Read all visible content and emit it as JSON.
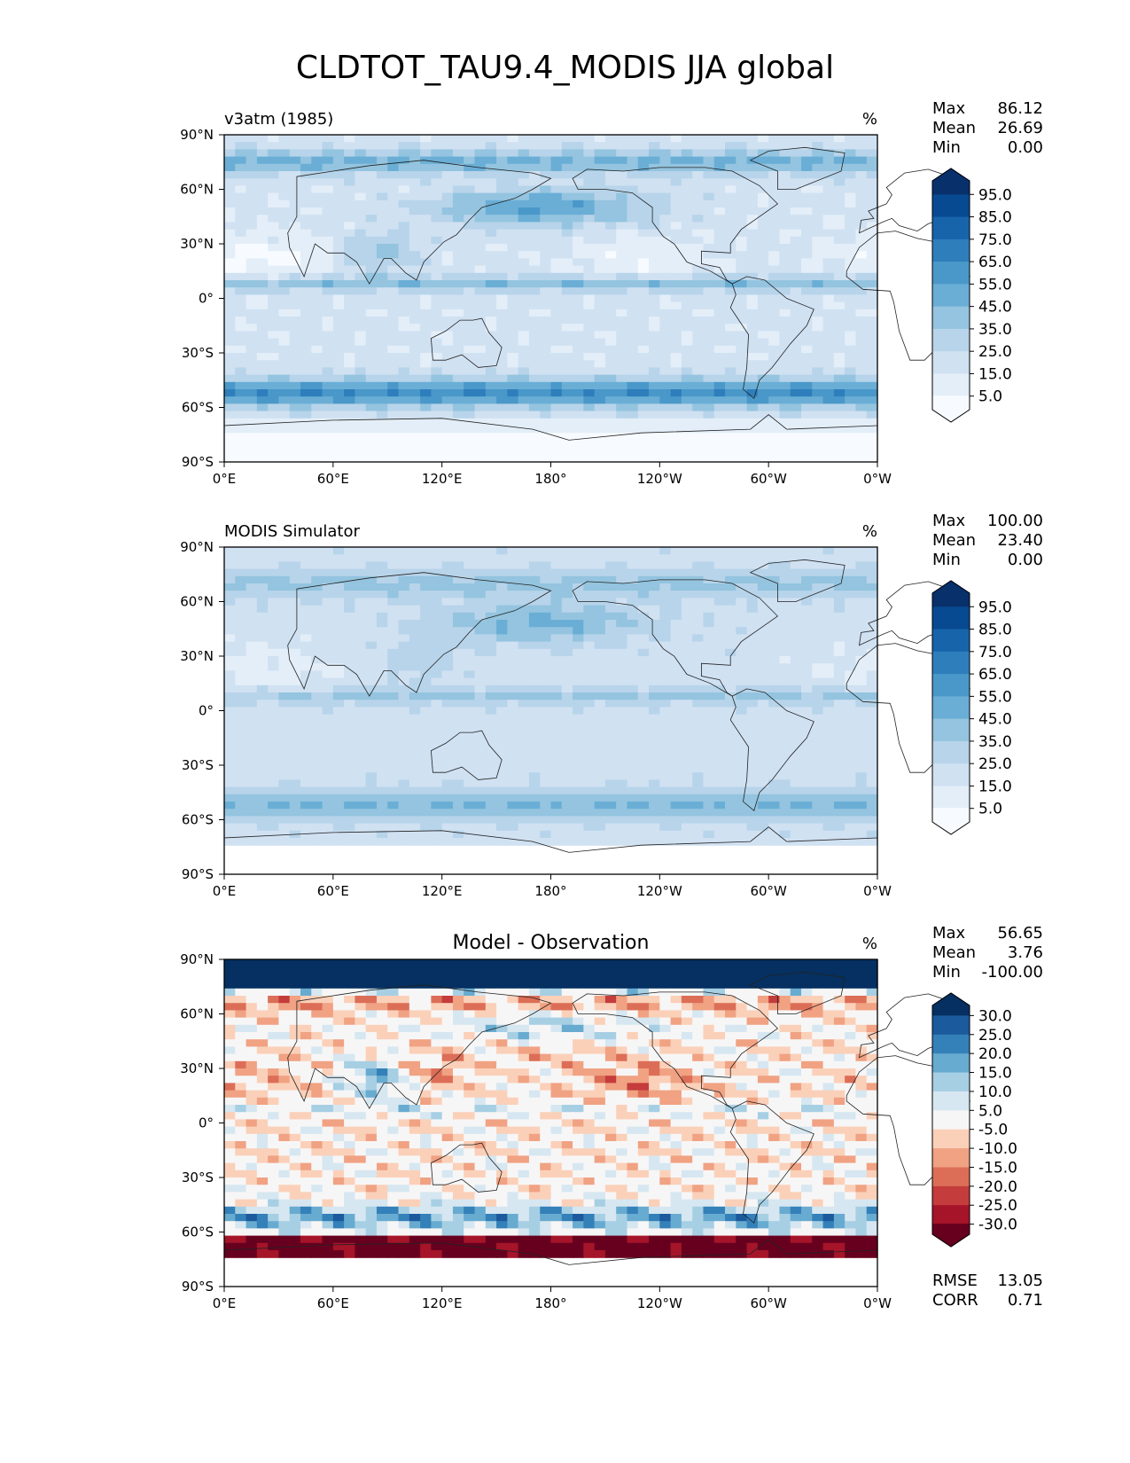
{
  "title": "CLDTOT_TAU9.4_MODIS JJA global",
  "lon_ticks": [
    "0°E",
    "60°E",
    "120°E",
    "180°",
    "120°W",
    "60°W",
    "0°W"
  ],
  "lat_ticks": [
    "90°N",
    "60°N",
    "30°N",
    "0°",
    "30°S",
    "60°S",
    "90°S"
  ],
  "stat_labels": {
    "max": "Max",
    "mean": "Mean",
    "min": "Min",
    "rmse": "RMSE",
    "corr": "CORR"
  },
  "panels": [
    {
      "id": "test",
      "left_title": "v3atm (1985)",
      "center_title": "",
      "units": "%",
      "stats": {
        "max": "86.12",
        "mean": "26.69",
        "min": "0.00"
      },
      "colorbar": {
        "ticks": [
          "95.0",
          "85.0",
          "75.0",
          "65.0",
          "55.0",
          "45.0",
          "35.0",
          "25.0",
          "15.0",
          "5.0"
        ],
        "colors": [
          "#f7fbff",
          "#e3eef8",
          "#d0e1f2",
          "#b7d4ea",
          "#94c4df",
          "#6aaed6",
          "#4a98c9",
          "#2e7ebc",
          "#1764ab",
          "#084a91",
          "#08306b"
        ]
      },
      "field": "cloud_model"
    },
    {
      "id": "ref",
      "left_title": "MODIS Simulator",
      "center_title": "",
      "units": "%",
      "stats": {
        "max": "100.00",
        "mean": "23.40",
        "min": "0.00"
      },
      "colorbar": {
        "ticks": [
          "95.0",
          "85.0",
          "75.0",
          "65.0",
          "55.0",
          "45.0",
          "35.0",
          "25.0",
          "15.0",
          "5.0"
        ],
        "colors": [
          "#f7fbff",
          "#e3eef8",
          "#d0e1f2",
          "#b7d4ea",
          "#94c4df",
          "#6aaed6",
          "#4a98c9",
          "#2e7ebc",
          "#1764ab",
          "#084a91",
          "#08306b"
        ]
      },
      "field": "cloud_obs"
    },
    {
      "id": "diff",
      "left_title": "",
      "center_title": "Model - Observation",
      "units": "%",
      "stats": {
        "max": "56.65",
        "mean": "3.76",
        "min": "-100.00"
      },
      "extra_stats": {
        "rmse": "13.05",
        "corr": "0.71"
      },
      "colorbar": {
        "ticks": [
          "30.0",
          "25.0",
          "20.0",
          "15.0",
          "10.0",
          "5.0",
          "-5.0",
          "-10.0",
          "-15.0",
          "-20.0",
          "-25.0",
          "-30.0"
        ],
        "colors": [
          "#67001f",
          "#a51429",
          "#c43c3c",
          "#dc6e57",
          "#f0a283",
          "#fbd0b9",
          "#f7f6f6",
          "#d6e7f1",
          "#a7cfe4",
          "#68abd0",
          "#3480b9",
          "#1b5a9c",
          "#053061"
        ]
      },
      "field": "diff"
    }
  ]
}
